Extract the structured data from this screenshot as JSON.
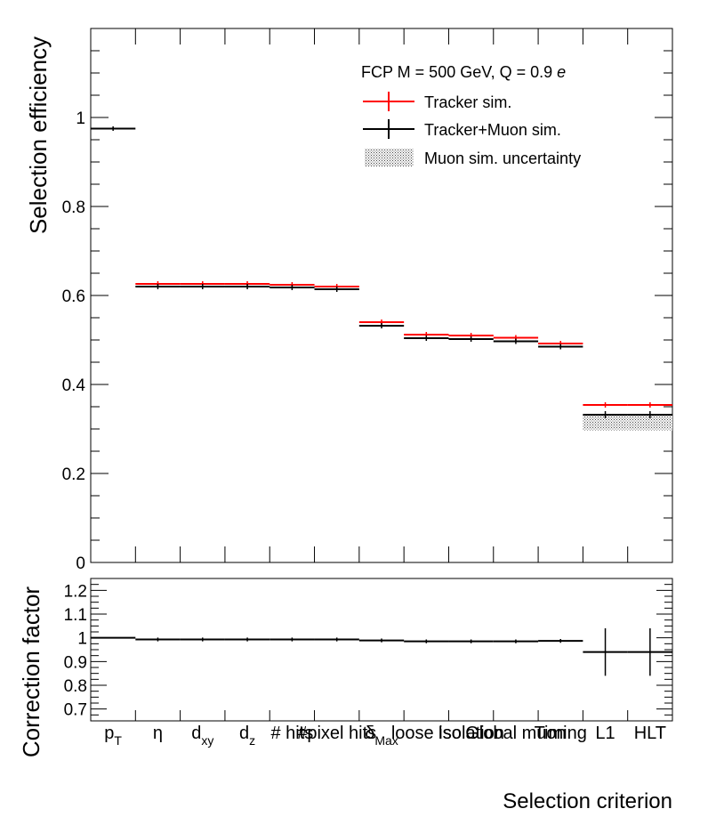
{
  "chart_data": [
    {
      "type": "bar",
      "panel": "main",
      "title": "",
      "xlabel": "",
      "ylabel": "Selection efficiency",
      "ylim": [
        0,
        1.2
      ],
      "yticks": [
        "0",
        "0.2",
        "0.4",
        "0.6",
        "0.8",
        "1"
      ],
      "categories": [
        "pT",
        "η",
        "dxy",
        "dz",
        "# hits",
        "#pixel hits",
        "δ",
        "loose iso",
        "Isolation",
        "Global muon",
        "Timing",
        "L1",
        "HLT"
      ],
      "series": [
        {
          "name": "Tracker sim.",
          "color": "#ff0000",
          "values": [
            null,
            0.626,
            0.626,
            0.626,
            0.624,
            0.62,
            0.54,
            0.512,
            0.51,
            0.505,
            0.492,
            0.354,
            0.354
          ],
          "errors": [
            null,
            0.006,
            0.006,
            0.006,
            0.006,
            0.006,
            0.006,
            0.006,
            0.006,
            0.006,
            0.006,
            0.006,
            0.006
          ]
        },
        {
          "name": "Tracker+Muon sim.",
          "color": "#000000",
          "values": [
            0.975,
            0.62,
            0.62,
            0.62,
            0.618,
            0.614,
            0.532,
            0.504,
            0.502,
            0.497,
            0.485,
            0.332,
            0.332
          ],
          "errors": [
            0.005,
            0.006,
            0.006,
            0.006,
            0.006,
            0.006,
            0.006,
            0.006,
            0.006,
            0.006,
            0.006,
            0.008,
            0.008
          ]
        },
        {
          "name": "Muon sim. uncertainty",
          "style": "hatched band",
          "values": [
            null,
            null,
            null,
            null,
            null,
            null,
            null,
            null,
            null,
            null,
            null,
            0.315,
            0.315
          ],
          "errors": [
            null,
            null,
            null,
            null,
            null,
            null,
            null,
            null,
            null,
            null,
            null,
            0.018,
            0.018
          ]
        }
      ],
      "legend": {
        "position": "top-right",
        "header_text": "FCP M = 500 GeV, Q = 0.9 ",
        "header_italic": "e",
        "entries": [
          "Tracker sim.",
          "Tracker+Muon sim.",
          "Muon sim. uncertainty"
        ]
      }
    },
    {
      "type": "bar",
      "panel": "ratio",
      "xlabel": "Selection criterion",
      "ylabel": "Correction factor",
      "ylim": [
        0.65,
        1.25
      ],
      "yticks": [
        "0.7",
        "0.8",
        "0.9",
        "1",
        "1.1",
        "1.2"
      ],
      "series": [
        {
          "name": "Correction factor",
          "color": "#000000",
          "values": [
            1.0,
            0.993,
            0.993,
            0.993,
            0.993,
            0.993,
            0.989,
            0.985,
            0.985,
            0.985,
            0.987,
            0.94,
            0.94
          ],
          "errors": [
            0.002,
            0.008,
            0.008,
            0.008,
            0.008,
            0.008,
            0.008,
            0.008,
            0.008,
            0.008,
            0.008,
            0.1,
            0.1
          ]
        }
      ],
      "xlabels": [
        {
          "main": "p",
          "sub": "T"
        },
        {
          "main": "η",
          "sub": ""
        },
        {
          "main": "d",
          "sub": "xy"
        },
        {
          "main": "d",
          "sub": "z"
        },
        {
          "main": "# hits",
          "sub": ""
        },
        {
          "main": "#pixel hits",
          "sub": ""
        },
        {
          "main": "δ",
          "sub": "Max"
        },
        {
          "main": "loose iso",
          "sub": ""
        },
        {
          "main": "Isolation",
          "sub": ""
        },
        {
          "main": "Global muon",
          "sub": ""
        },
        {
          "main": "Timing",
          "sub": ""
        },
        {
          "main": "L1",
          "sub": ""
        },
        {
          "main": "HLT",
          "sub": ""
        }
      ]
    }
  ]
}
